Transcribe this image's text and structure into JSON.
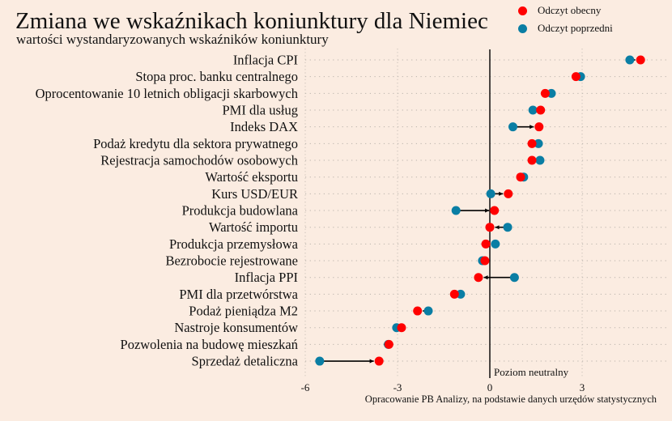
{
  "title": "Zmiana we wskaźnikach koniunktury dla Niemiec",
  "subtitle": "wartości wystandaryzowanych wskaźników koniunktury",
  "source": "Opracowanie PB Analizy, na podstawie danych urzędów statystycznych",
  "colors": {
    "current": "#ff0000",
    "previous": "#0a7ea4",
    "background": "#fbece1"
  },
  "chart_data": {
    "type": "dumbbell",
    "title": "Zmiana we wskaźnikach koniunktury dla Niemiec",
    "xlim": [
      -6,
      5
    ],
    "xticks": [
      -6,
      -3,
      0,
      3
    ],
    "xtick_labels": [
      "-6",
      "-3",
      "0",
      "3"
    ],
    "reference_line": {
      "value": 0,
      "label": "Poziom neutralny"
    },
    "grid": true,
    "legend": {
      "position": "top-right",
      "entries": [
        "Odczyt obecny",
        "Odczyt poprzedni"
      ]
    },
    "categories": [
      "Inflacja CPI",
      "Stopa proc. banku centralnego",
      "Oprocentowanie 10 letnich obligacji skarbowych",
      "PMI dla usług",
      "Indeks DAX",
      "Podaż kredytu dla sektora prywatnego",
      "Rejestracja samochodów osobowych",
      "Wartość eksportu",
      "Kurs USD/EUR",
      "Produkcja budowlana",
      "Wartość importu",
      "Produkcja przemysłowa",
      "Bezrobocie rejestrowane",
      "Inflacja PPI",
      "PMI dla przetwórstwa",
      "Podaż pieniądza M2",
      "Nastroje konsumentów",
      "Pozwolenia na budowę mieszkań",
      "Sprzedaż detaliczna"
    ],
    "series": [
      {
        "name": "Odczyt obecny",
        "values": [
          4.9,
          2.8,
          1.8,
          1.65,
          1.6,
          1.37,
          1.37,
          1.0,
          0.6,
          0.15,
          0.0,
          -0.13,
          -0.16,
          -0.37,
          -1.15,
          -2.35,
          -2.87,
          -3.28,
          -3.6
        ]
      },
      {
        "name": "Odczyt poprzedni",
        "values": [
          4.55,
          2.95,
          2.0,
          1.4,
          0.75,
          1.58,
          1.63,
          1.1,
          0.03,
          -1.1,
          0.58,
          0.18,
          -0.24,
          0.8,
          -0.95,
          -2.0,
          -3.03,
          -3.3,
          -5.53
        ]
      }
    ]
  }
}
